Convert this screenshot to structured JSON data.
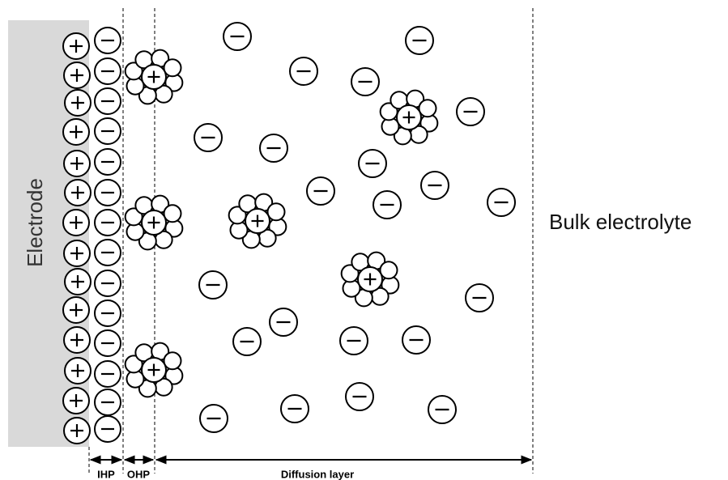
{
  "electrode": {
    "label": "Electrode"
  },
  "bulk": {
    "label": "Bulk electrolyte"
  },
  "regions": [
    {
      "label": "IHP"
    },
    {
      "label": "OHP"
    },
    {
      "label": "Diffusion layer"
    }
  ]
}
